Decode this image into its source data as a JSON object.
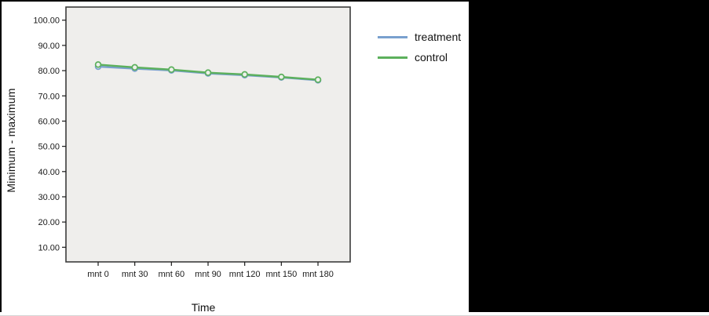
{
  "page": {
    "background": "#000000",
    "panel_background": "#ffffff"
  },
  "chart_data": {
    "type": "line",
    "title": "",
    "xlabel": "Time",
    "ylabel": "Minimum - maximum",
    "categories": [
      "mnt 0",
      "mnt 30",
      "mnt 60",
      "mnt 90",
      "mnt 120",
      "mnt 150",
      "mnt 180"
    ],
    "series": [
      {
        "name": "treatment",
        "color": "#79a0ce",
        "values": [
          81.6,
          80.8,
          80.1,
          78.9,
          78.2,
          77.3,
          76.2
        ]
      },
      {
        "name": "control",
        "color": "#5cb05c",
        "values": [
          82.4,
          81.3,
          80.4,
          79.2,
          78.5,
          77.5,
          76.4
        ]
      }
    ],
    "y_tick_labels": [
      "100.00",
      "90.00",
      "80.00",
      "70.00",
      "60.00",
      "50.00",
      "40.00",
      "30.00",
      "20.00",
      "10.00"
    ],
    "ylim": [
      4.2,
      105.2
    ],
    "grid": false,
    "legend_position": "right-top",
    "plot_background": "#efeeec",
    "plot_border_color": "#3c3c3c",
    "tick_color": "#1a1a1a",
    "marker_fill": "#eef0ec"
  }
}
